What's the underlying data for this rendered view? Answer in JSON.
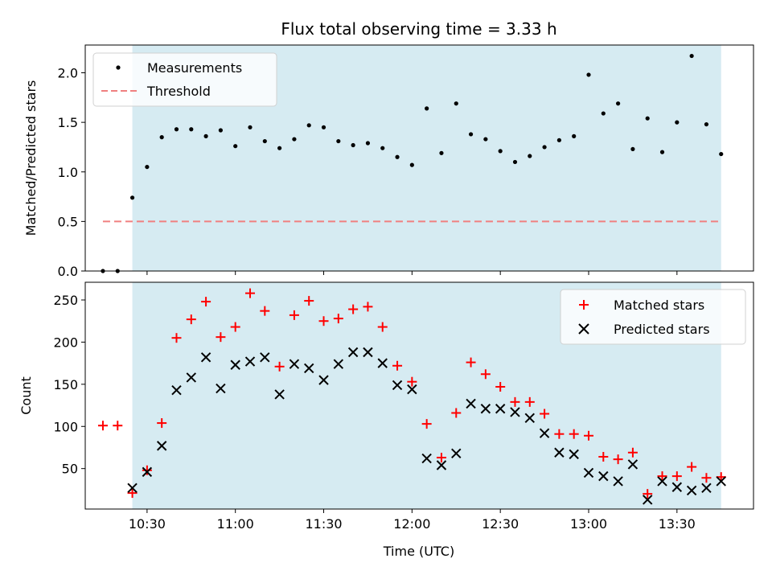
{
  "chart_data": [
    {
      "type": "scatter",
      "title": "Flux total observing time = 3.33 h",
      "xlabel": "",
      "ylabel": "Matched/Predicted stars",
      "ylim": [
        0,
        2.28
      ],
      "yticks": [
        "0.0",
        "0.5",
        "1.0",
        "1.5",
        "2.0"
      ],
      "ytick_values": [
        0,
        0.5,
        1.0,
        1.5,
        2.0
      ],
      "shaded_span": {
        "x_start": "10:25",
        "x_end": "13:45",
        "color": "#add8e6"
      },
      "legend": {
        "location": "upper-left",
        "items": [
          "Measurements",
          "Threshold"
        ]
      },
      "series": [
        {
          "name": "Measurements",
          "marker": "dot",
          "color": "#000000",
          "x": [
            "10:15",
            "10:20",
            "10:25",
            "10:30",
            "10:35",
            "10:40",
            "10:45",
            "10:50",
            "10:55",
            "11:00",
            "11:05",
            "11:10",
            "11:15",
            "11:20",
            "11:25",
            "11:30",
            "11:35",
            "11:40",
            "11:45",
            "11:50",
            "11:55",
            "12:00",
            "12:05",
            "12:10",
            "12:15",
            "12:20",
            "12:25",
            "12:30",
            "12:35",
            "12:40",
            "12:45",
            "12:50",
            "12:55",
            "13:00",
            "13:05",
            "13:10",
            "13:15",
            "13:20",
            "13:25",
            "13:30",
            "13:35",
            "13:40",
            "13:45"
          ],
          "y": [
            0.0,
            0.0,
            0.74,
            1.05,
            1.35,
            1.43,
            1.43,
            1.36,
            1.42,
            1.26,
            1.45,
            1.31,
            1.24,
            1.33,
            1.47,
            1.45,
            1.31,
            1.27,
            1.29,
            1.24,
            1.15,
            1.07,
            1.64,
            1.19,
            1.69,
            1.38,
            1.33,
            1.21,
            1.1,
            1.16,
            1.25,
            1.32,
            1.36,
            1.98,
            1.59,
            1.69,
            1.23,
            1.54,
            1.2,
            1.5,
            2.17,
            1.48,
            1.18
          ]
        },
        {
          "name": "Threshold",
          "style": "dashed",
          "color": "#f08080",
          "x": [
            "10:15",
            "13:45"
          ],
          "y": [
            0.5,
            0.5
          ]
        }
      ]
    },
    {
      "type": "scatter",
      "title": "",
      "xlabel": "Time (UTC)",
      "ylabel": "Count",
      "ylim": [
        2,
        271
      ],
      "yticks": [
        "50",
        "100",
        "150",
        "200",
        "250"
      ],
      "ytick_values": [
        50,
        100,
        150,
        200,
        250
      ],
      "xticks": [
        "10:30",
        "11:00",
        "11:30",
        "12:00",
        "12:30",
        "13:00",
        "13:30"
      ],
      "xlim": [
        "10:09",
        "13:56"
      ],
      "shaded_span": {
        "x_start": "10:25",
        "x_end": "13:45",
        "color": "#add8e6"
      },
      "legend": {
        "location": "upper-right",
        "items": [
          "Matched stars",
          "Predicted stars"
        ]
      },
      "series": [
        {
          "name": "Matched stars",
          "marker": "plus",
          "color": "#ff0000",
          "x": [
            "10:15",
            "10:20",
            "10:25",
            "10:30",
            "10:35",
            "10:40",
            "10:45",
            "10:50",
            "10:55",
            "11:00",
            "11:05",
            "11:10",
            "11:15",
            "11:20",
            "11:25",
            "11:30",
            "11:35",
            "11:40",
            "11:45",
            "11:50",
            "11:55",
            "12:00",
            "12:05",
            "12:10",
            "12:15",
            "12:20",
            "12:25",
            "12:30",
            "12:35",
            "12:40",
            "12:45",
            "12:50",
            "12:55",
            "13:00",
            "13:05",
            "13:10",
            "13:15",
            "13:20",
            "13:25",
            "13:30",
            "13:35",
            "13:40",
            "13:45"
          ],
          "y": [
            101,
            101,
            21,
            48,
            104,
            205,
            227,
            248,
            206,
            218,
            258,
            237,
            171,
            232,
            249,
            225,
            228,
            239,
            242,
            218,
            172,
            153,
            103,
            63,
            116,
            176,
            162,
            147,
            129,
            129,
            115,
            91,
            91,
            89,
            64,
            61,
            69,
            20,
            41,
            41,
            52,
            39,
            40
          ]
        },
        {
          "name": "Predicted stars",
          "marker": "x",
          "color": "#000000",
          "x": [
            "10:25",
            "10:30",
            "10:35",
            "10:40",
            "10:45",
            "10:50",
            "10:55",
            "11:00",
            "11:05",
            "11:10",
            "11:15",
            "11:20",
            "11:25",
            "11:30",
            "11:35",
            "11:40",
            "11:45",
            "11:50",
            "11:55",
            "12:00",
            "12:05",
            "12:10",
            "12:15",
            "12:20",
            "12:25",
            "12:30",
            "12:35",
            "12:40",
            "12:45",
            "12:50",
            "12:55",
            "13:00",
            "13:05",
            "13:10",
            "13:15",
            "13:20",
            "13:25",
            "13:30",
            "13:35",
            "13:40",
            "13:45"
          ],
          "y": [
            27,
            46,
            77,
            143,
            158,
            182,
            145,
            173,
            177,
            182,
            138,
            174,
            169,
            155,
            174,
            188,
            188,
            175,
            149,
            144,
            62,
            54,
            68,
            127,
            121,
            121,
            117,
            110,
            92,
            69,
            67,
            45,
            41,
            35,
            55,
            13,
            35,
            28,
            24,
            27,
            35
          ]
        }
      ]
    }
  ]
}
